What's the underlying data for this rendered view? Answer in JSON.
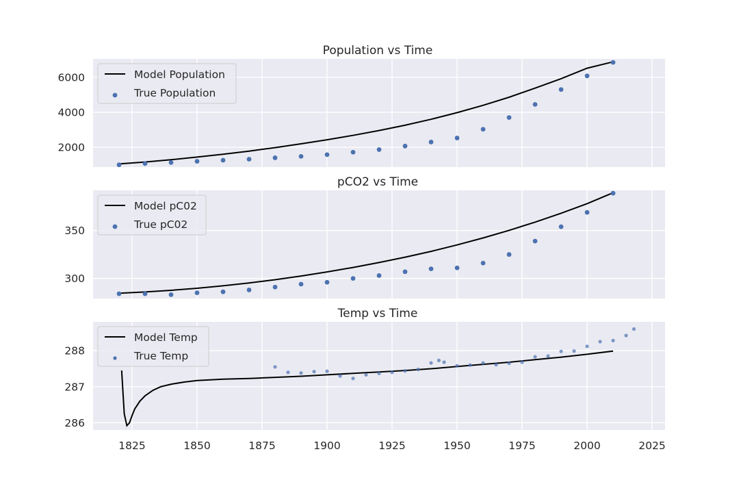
{
  "chart_data": [
    {
      "type": "line",
      "title": "Population vs Time",
      "xlim": [
        1810,
        2030
      ],
      "ylim": [
        870,
        7050
      ],
      "xticks": [
        1825,
        1850,
        1875,
        1900,
        1925,
        1950,
        1975,
        2000,
        2025
      ],
      "yticks": [
        2000,
        4000,
        6000
      ],
      "show_xtick_labels": false,
      "grid": true,
      "legend_position": "upper-left",
      "series": [
        {
          "name": "Model Population",
          "kind": "line",
          "color": "#000000",
          "x": [
            1820,
            1830,
            1840,
            1850,
            1860,
            1870,
            1880,
            1890,
            1900,
            1910,
            1920,
            1930,
            1940,
            1950,
            1960,
            1970,
            1980,
            1990,
            2000,
            2010
          ],
          "y": [
            1050,
            1160,
            1290,
            1440,
            1600,
            1780,
            1980,
            2200,
            2430,
            2680,
            2960,
            3260,
            3600,
            3980,
            4400,
            4860,
            5380,
            5920,
            6520,
            6880
          ]
        },
        {
          "name": "True Population",
          "kind": "scatter",
          "color": "#4c72b0",
          "x": [
            1820,
            1830,
            1840,
            1850,
            1860,
            1870,
            1880,
            1890,
            1900,
            1910,
            1920,
            1930,
            1940,
            1950,
            1960,
            1970,
            1980,
            1990,
            2000,
            2010
          ],
          "y": [
            1000,
            1070,
            1130,
            1200,
            1260,
            1320,
            1400,
            1480,
            1580,
            1720,
            1870,
            2070,
            2300,
            2530,
            3030,
            3700,
            4450,
            5300,
            6080,
            6850
          ]
        }
      ]
    },
    {
      "type": "line",
      "title": "pCO2 vs Time",
      "xlim": [
        1810,
        2030
      ],
      "ylim": [
        279,
        392
      ],
      "xticks": [
        1825,
        1850,
        1875,
        1900,
        1925,
        1950,
        1975,
        2000,
        2025
      ],
      "yticks": [
        300,
        350
      ],
      "show_xtick_labels": false,
      "grid": true,
      "legend_position": "upper-left",
      "series": [
        {
          "name": "Model pC02",
          "kind": "line",
          "color": "#000000",
          "x": [
            1820,
            1830,
            1840,
            1850,
            1860,
            1870,
            1880,
            1890,
            1900,
            1910,
            1920,
            1930,
            1940,
            1950,
            1960,
            1970,
            1980,
            1990,
            2000,
            2010
          ],
          "y": [
            284.5,
            285.9,
            287.6,
            289.7,
            292.3,
            295.3,
            298.7,
            302.5,
            306.8,
            311.5,
            316.6,
            322.2,
            328.3,
            335.0,
            342.3,
            350.2,
            358.8,
            368.1,
            378.1,
            389.5
          ]
        },
        {
          "name": "True pC02",
          "kind": "scatter",
          "color": "#4c72b0",
          "x": [
            1820,
            1830,
            1840,
            1850,
            1860,
            1870,
            1880,
            1890,
            1900,
            1910,
            1920,
            1930,
            1940,
            1950,
            1960,
            1970,
            1980,
            1990,
            2000,
            2010
          ],
          "y": [
            284,
            284,
            283,
            285,
            286,
            288,
            291,
            294,
            296,
            300,
            303,
            307,
            310,
            311,
            316,
            325,
            339,
            354,
            369,
            389
          ]
        }
      ]
    },
    {
      "type": "line",
      "title": "Temp vs Time",
      "xlim": [
        1810,
        2030
      ],
      "ylim": [
        285.8,
        288.8
      ],
      "xticks": [
        1825,
        1850,
        1875,
        1900,
        1925,
        1950,
        1975,
        2000,
        2025
      ],
      "yticks": [
        286,
        287,
        288
      ],
      "show_xtick_labels": true,
      "grid": true,
      "legend_position": "upper-left",
      "series": [
        {
          "name": "Model Temp",
          "kind": "line",
          "color": "#000000",
          "x": [
            1821,
            1822,
            1823,
            1824,
            1825,
            1826,
            1828,
            1830,
            1833,
            1836,
            1840,
            1845,
            1850,
            1860,
            1870,
            1880,
            1890,
            1900,
            1910,
            1920,
            1930,
            1940,
            1950,
            1960,
            1970,
            1980,
            1990,
            2000,
            2010
          ],
          "y": [
            287.45,
            286.25,
            285.92,
            286.0,
            286.2,
            286.38,
            286.6,
            286.75,
            286.9,
            287.0,
            287.07,
            287.13,
            287.17,
            287.21,
            287.23,
            287.26,
            287.29,
            287.33,
            287.37,
            287.41,
            287.45,
            287.5,
            287.56,
            287.62,
            287.68,
            287.75,
            287.82,
            287.9,
            287.99
          ]
        },
        {
          "name": "True Temp",
          "kind": "scatter",
          "color": "#4c72b0",
          "x": [
            1880,
            1885,
            1890,
            1895,
            1900,
            1905,
            1910,
            1915,
            1920,
            1925,
            1930,
            1935,
            1940,
            1943,
            1945,
            1950,
            1955,
            1960,
            1965,
            1970,
            1975,
            1980,
            1985,
            1990,
            1995,
            2000,
            2005,
            2010,
            2015,
            2018
          ],
          "y": [
            287.55,
            287.4,
            287.38,
            287.42,
            287.43,
            287.3,
            287.23,
            287.33,
            287.37,
            287.4,
            287.44,
            287.48,
            287.66,
            287.73,
            287.68,
            287.58,
            287.6,
            287.66,
            287.61,
            287.65,
            287.68,
            287.83,
            287.85,
            287.98,
            287.99,
            288.12,
            288.25,
            288.28,
            288.42,
            288.6
          ]
        }
      ]
    }
  ],
  "colors": {
    "axes_background": "#eaeaf2",
    "grid": "#ffffff",
    "text": "#262626",
    "legend_frame": "#cccccc"
  }
}
